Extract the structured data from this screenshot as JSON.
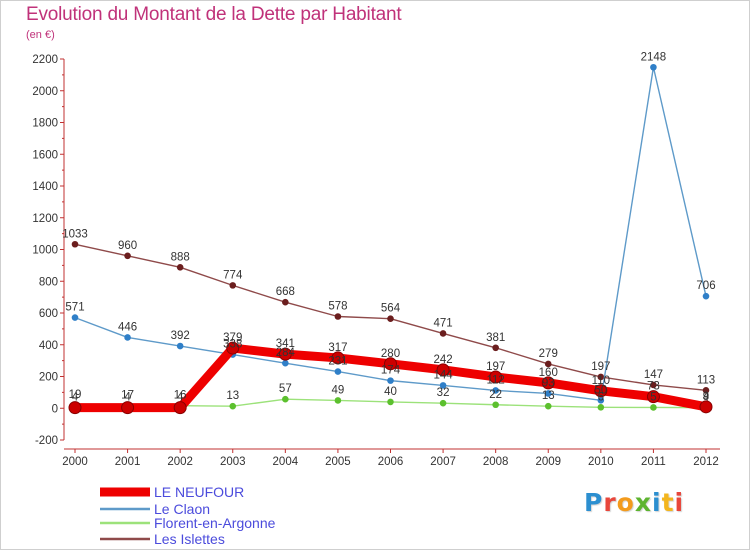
{
  "chart_data": {
    "type": "line",
    "title": "Evolution du Montant de la Dette par Habitant",
    "subtitle": "(en €)",
    "x": [
      "2000",
      "2001",
      "2002",
      "2003",
      "2004",
      "2005",
      "2006",
      "2007",
      "2008",
      "2009",
      "2010",
      "2011",
      "2012"
    ],
    "ylim": [
      -200,
      2200
    ],
    "yticks": [
      -200,
      0,
      200,
      400,
      600,
      800,
      1000,
      1200,
      1400,
      1600,
      1800,
      2000,
      2200
    ],
    "grid": false,
    "legend_position": "bottom-left",
    "series": [
      {
        "name": "LE NEUFOUR",
        "color": "#ee0000",
        "marker_color": "#cc0000",
        "emphasis": "thick",
        "values": [
          4,
          4,
          4,
          379,
          341,
          317,
          280,
          242,
          197,
          160,
          110,
          73,
          9
        ],
        "labels": [
          "4",
          "4",
          "4",
          "379",
          "341",
          "317",
          "280",
          "242",
          "197",
          "160",
          "110",
          "73",
          "9"
        ]
      },
      {
        "name": "Le Claon",
        "color": "#5e9ac9",
        "marker_color": "#2f7fc8",
        "values": [
          571,
          446,
          392,
          338,
          284,
          231,
          174,
          144,
          112,
          93,
          50,
          2148,
          706
        ],
        "labels": [
          "571",
          "446",
          "392",
          "338",
          "284",
          "231",
          "174",
          "144",
          "112",
          "93",
          "50",
          "2148",
          "706"
        ]
      },
      {
        "name": "Florent-en-Argonne",
        "color": "#9ce27a",
        "marker_color": "#5cc02e",
        "values": [
          19,
          17,
          16,
          13,
          57,
          49,
          40,
          32,
          22,
          13,
          6,
          5,
          4
        ],
        "labels": [
          "19",
          "17",
          "16",
          "13",
          "57",
          "49",
          "40",
          "32",
          "22",
          "13",
          "6",
          "5",
          "4"
        ]
      },
      {
        "name": "Les Islettes",
        "color": "#8f4a4a",
        "marker_color": "#6b1e1e",
        "values": [
          1033,
          960,
          888,
          774,
          668,
          578,
          564,
          471,
          381,
          279,
          197,
          147,
          113
        ],
        "labels": [
          "1033",
          "960",
          "888",
          "774",
          "668",
          "578",
          "564",
          "471",
          "381",
          "279",
          "197",
          "147",
          "113"
        ]
      }
    ]
  },
  "logo": {
    "text": "Proxiti"
  }
}
